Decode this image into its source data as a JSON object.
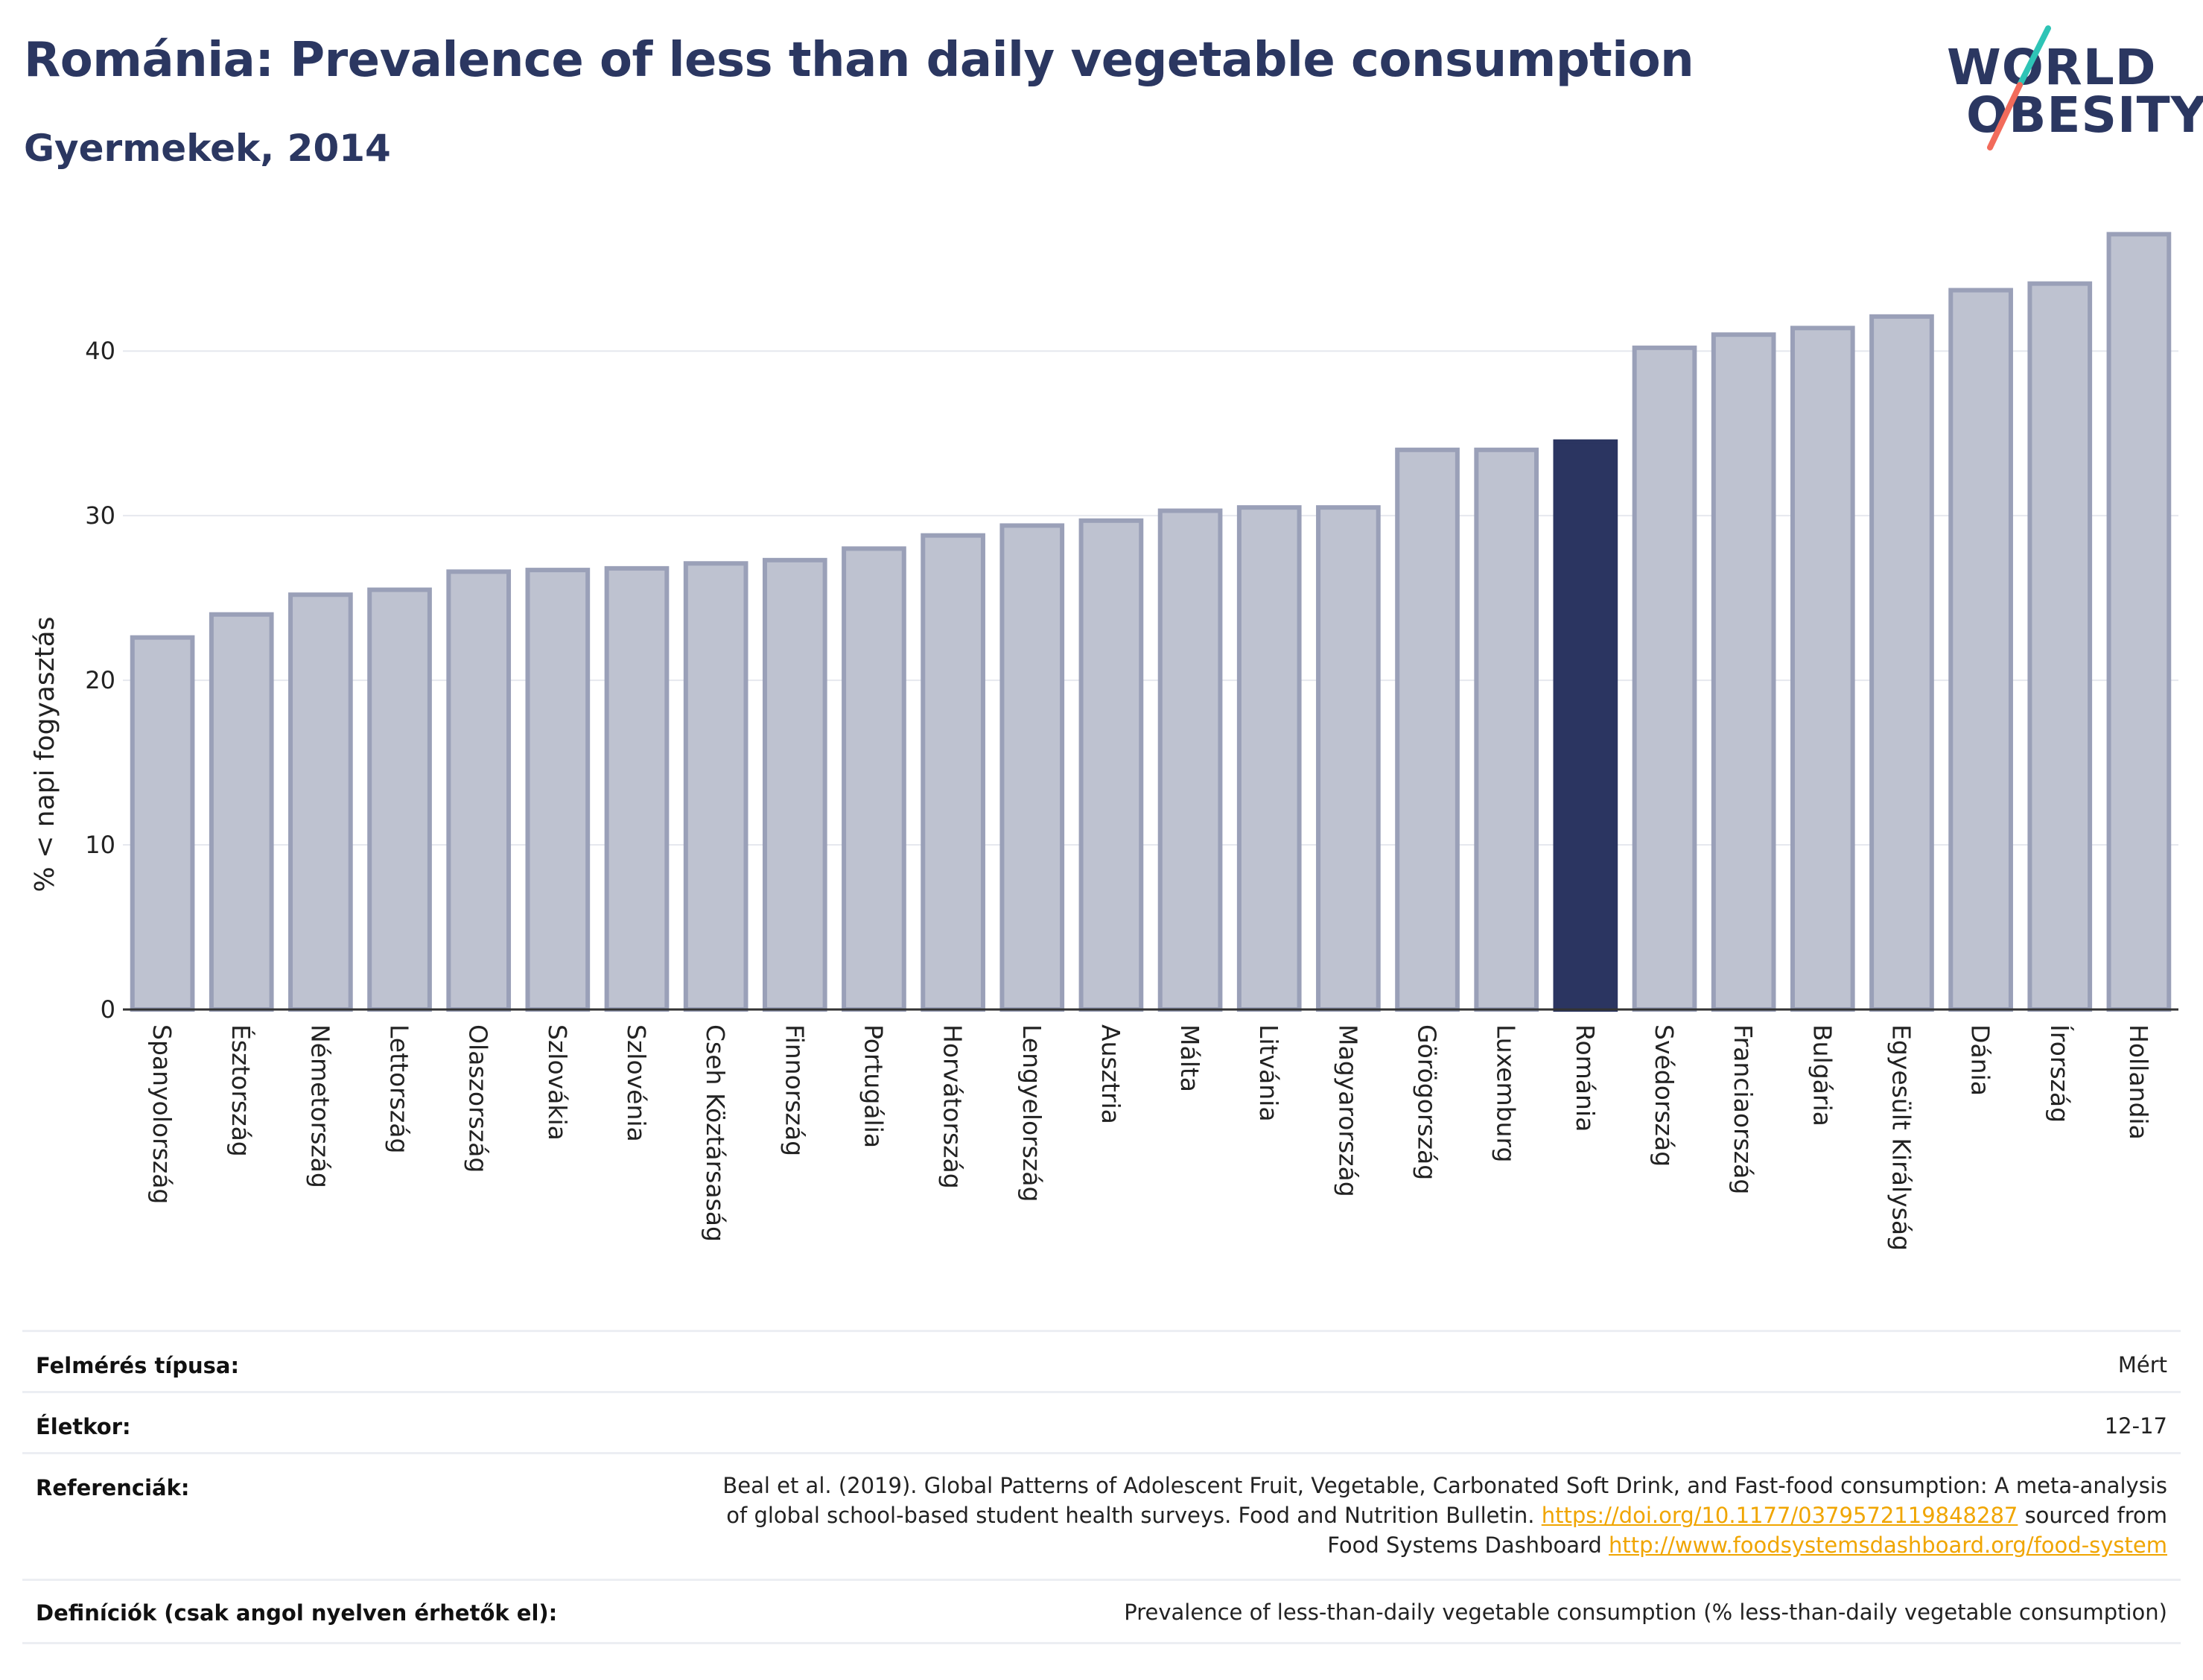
{
  "header": {
    "title": "Románia: Prevalence of less than daily vegetable consumption",
    "subtitle": "Gyermekek, 2014"
  },
  "logo": {
    "line1": "WORLD",
    "line2": "OBESITY"
  },
  "colors": {
    "bar_default": "#bec2d0",
    "bar_border": "#9aa0b8",
    "bar_highlight": "#2b3561",
    "title": "#2b3761",
    "logo_teal": "#2ec4b6",
    "logo_coral": "#f26b5b",
    "link": "#f0a500"
  },
  "chart_data": {
    "type": "bar",
    "ylabel": "% < napi fogyasztás",
    "ylim": [
      0,
      48
    ],
    "yticks": [
      0,
      10,
      20,
      30,
      40
    ],
    "grid": true,
    "highlight": "Románia",
    "categories": [
      "Spanyolország",
      "Észtország",
      "Németország",
      "Lettország",
      "Olaszország",
      "Szlovákia",
      "Szlovénia",
      "Cseh Köztársaság",
      "Finnország",
      "Portugália",
      "Horvátország",
      "Lengyelország",
      "Ausztria",
      "Málta",
      "Litvánia",
      "Magyarország",
      "Görögország",
      "Luxemburg",
      "Románia",
      "Svédország",
      "Franciaország",
      "Bulgária",
      "Egyesült Királyság",
      "Dánia",
      "Írország",
      "Hollandia"
    ],
    "values": [
      22.6,
      24.0,
      25.2,
      25.5,
      26.6,
      26.7,
      26.8,
      27.1,
      27.3,
      28.0,
      28.8,
      29.4,
      29.7,
      30.3,
      30.5,
      30.5,
      34.0,
      34.0,
      34.5,
      40.2,
      41.0,
      41.4,
      42.1,
      43.7,
      44.1,
      47.1
    ]
  },
  "meta": {
    "survey_label": "Felmérés típusa:",
    "survey_value": "Mért",
    "age_label": "Életkor:",
    "age_value": "12-17",
    "refs_label": "Referenciák:",
    "refs_text1": "Beal et al. (2019). Global Patterns of Adolescent Fruit, Vegetable, Carbonated Soft Drink, and Fast-food consumption: A meta-analysis",
    "refs_text2a": "of global school-based student health surveys. Food and Nutrition Bulletin. ",
    "refs_link1": "https://doi.org/10.1177/0379572119848287",
    "refs_text2b": " sourced from",
    "refs_text3a": "Food Systems Dashboard ",
    "refs_link2": "http://www.foodsystemsdashboard.org/food-system",
    "defs_label": "Definíciók (csak angol nyelven érhetők el):",
    "defs_value": "Prevalence of less-than-daily vegetable consumption (% less-than-daily vegetable consumption)"
  }
}
